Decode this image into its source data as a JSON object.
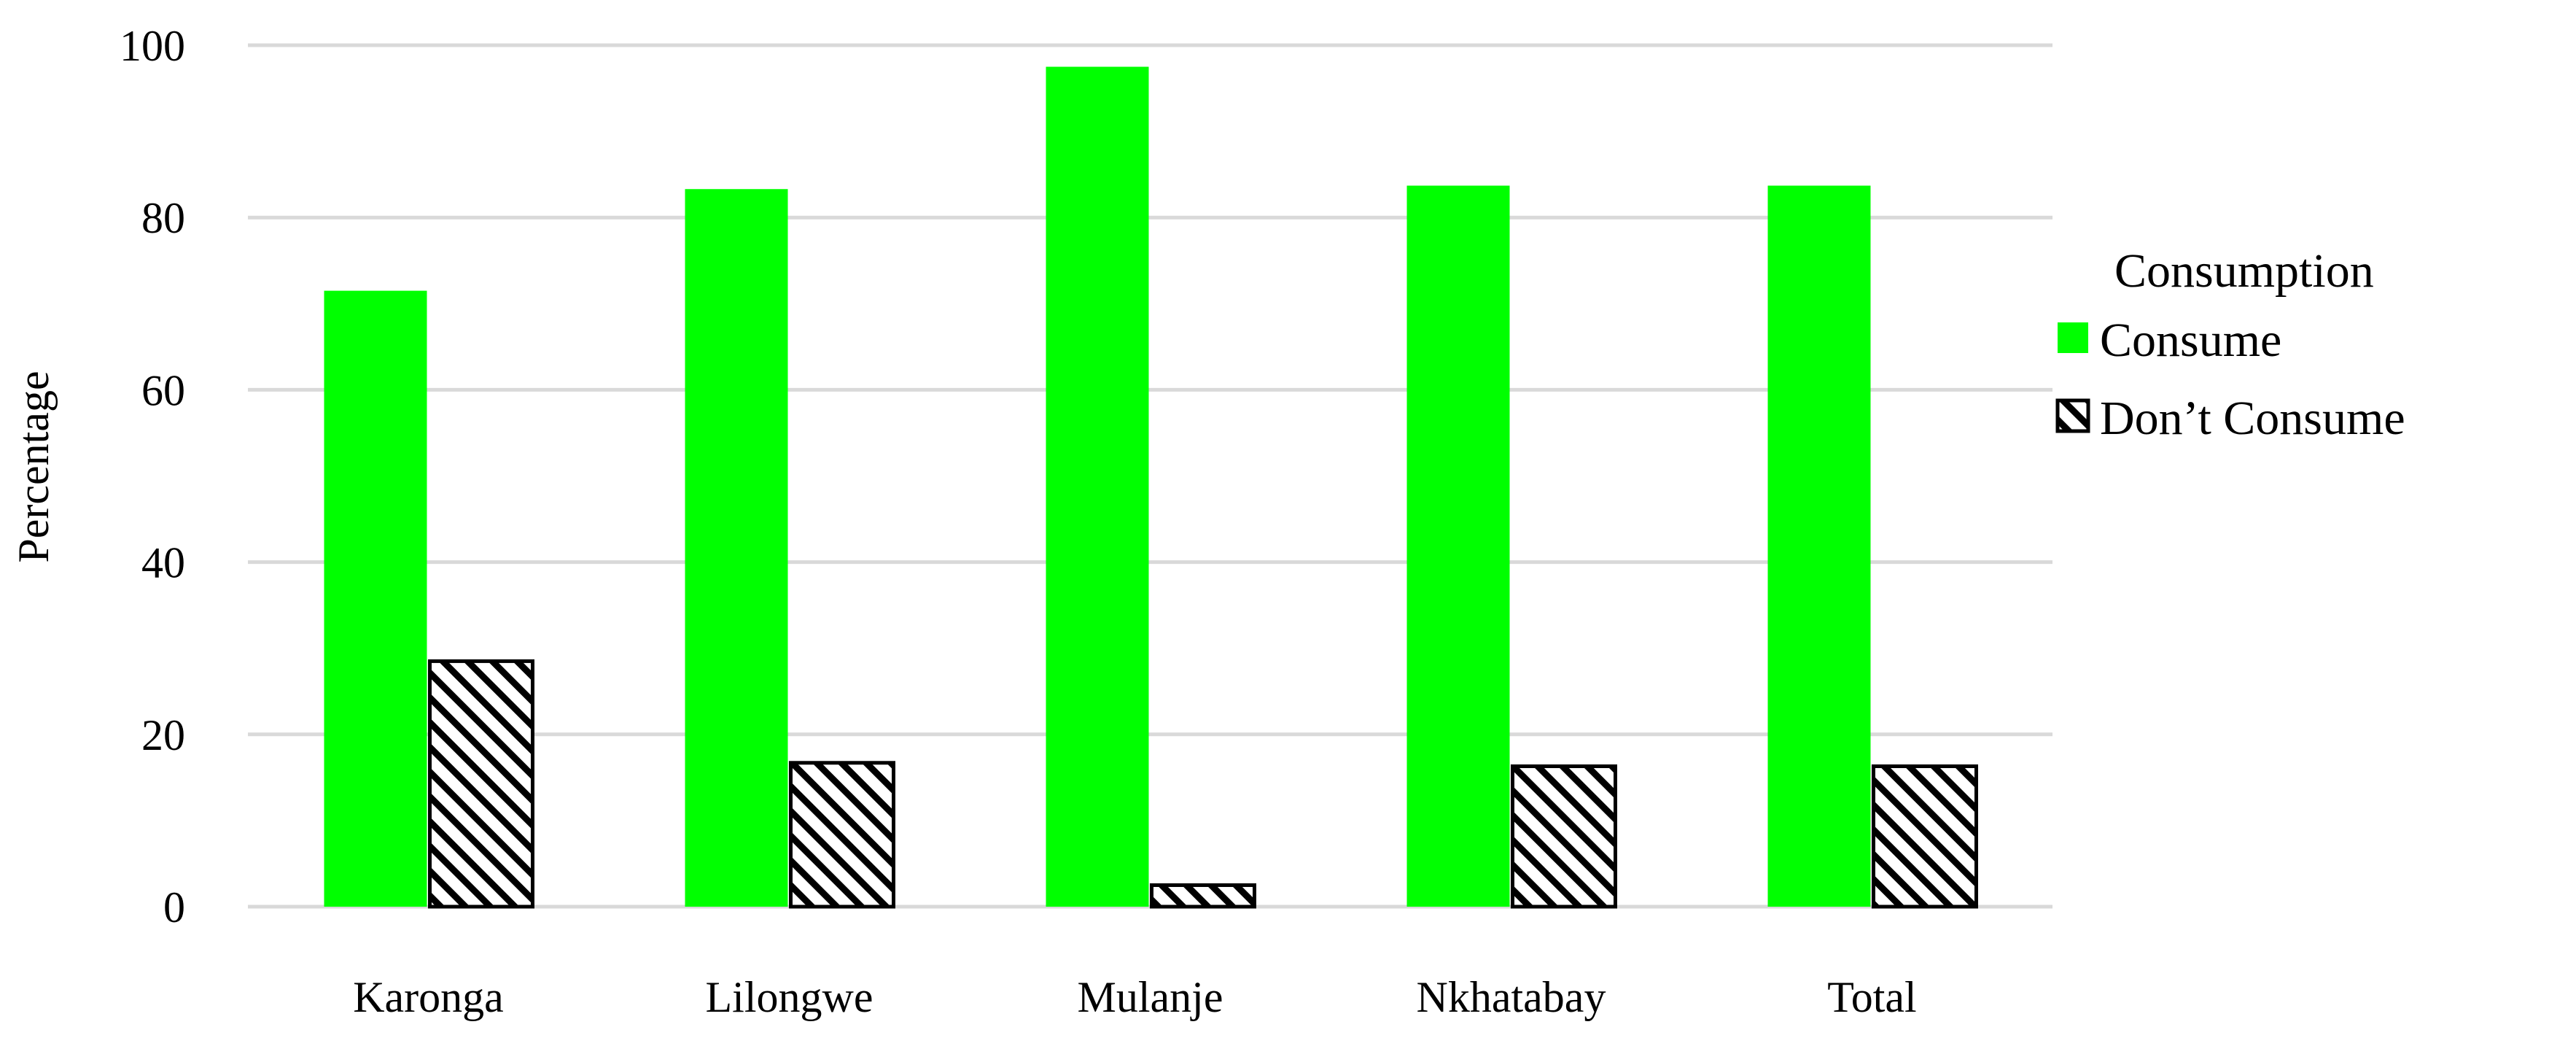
{
  "chart_data": {
    "type": "bar",
    "title": "",
    "xlabel": "",
    "ylabel": "Percentage",
    "ylim": [
      0,
      100
    ],
    "yticks": [
      0,
      20,
      40,
      60,
      80,
      100
    ],
    "grid": true,
    "legend": {
      "title": "Consumption",
      "position": "right"
    },
    "categories": [
      "Karonga",
      "Lilongwe",
      "Mulanje",
      "Nkhatabay",
      "Total"
    ],
    "series": [
      {
        "name": "Consume",
        "color": "#00ff00",
        "fill": "solid",
        "values": [
          71.5,
          83.3,
          97.5,
          83.7,
          83.7
        ]
      },
      {
        "name": "Don’t Consume",
        "color": "#000000",
        "fill": "hatched",
        "values": [
          28.5,
          16.7,
          2.5,
          16.3,
          16.3
        ]
      }
    ]
  }
}
